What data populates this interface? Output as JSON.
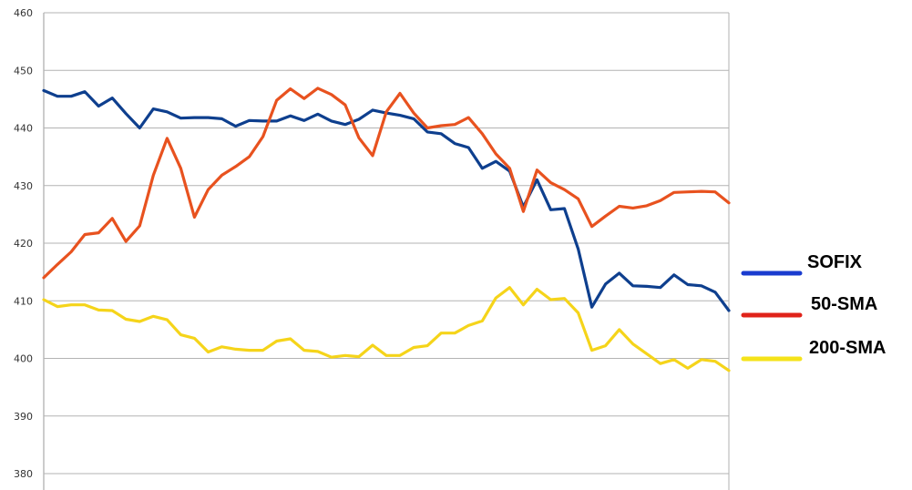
{
  "chart_data": {
    "type": "line",
    "title": "",
    "xlabel": "",
    "ylabel": "",
    "ylim": [
      380,
      460
    ],
    "yticks": [
      460,
      450,
      440,
      430,
      420,
      410,
      400,
      390,
      380
    ],
    "grid": "horizontal",
    "legend_position": "right",
    "series": [
      {
        "name": "SOFIX",
        "color": "#0e3f8e",
        "legend_color": "#1a3ccf",
        "values": [
          446.5,
          445.5,
          445.5,
          446.3,
          443.8,
          445.2,
          442.5,
          440.0,
          443.3,
          442.8,
          441.7,
          441.8,
          441.8,
          441.6,
          440.3,
          441.3,
          441.2,
          441.2,
          442.1,
          441.3,
          442.4,
          441.2,
          440.6,
          441.5,
          443.1,
          442.6,
          442.2,
          441.6,
          439.3,
          439.0,
          437.3,
          436.6,
          433.0,
          434.2,
          432.5,
          426.3,
          431.0,
          425.8,
          426.0,
          419.0,
          408.9,
          412.9,
          414.8,
          412.6,
          412.5,
          412.3,
          414.5,
          412.8,
          412.6,
          411.5,
          408.3
        ]
      },
      {
        "name": "50-SMA",
        "color": "#e8521f",
        "legend_color": "#e0231a",
        "values": [
          414.0,
          416.3,
          418.5,
          421.5,
          421.8,
          424.3,
          420.3,
          423.0,
          431.8,
          438.2,
          433.0,
          424.5,
          429.3,
          431.8,
          433.3,
          435.0,
          438.5,
          444.8,
          446.8,
          445.1,
          446.9,
          445.8,
          444.0,
          438.3,
          435.2,
          442.8,
          446.0,
          442.6,
          440.0,
          440.4,
          440.6,
          441.8,
          439.0,
          435.5,
          433.0,
          425.5,
          432.7,
          430.5,
          429.3,
          427.7,
          422.9,
          424.7,
          426.4,
          426.1,
          426.5,
          427.4,
          428.8,
          428.9,
          429.0,
          428.9,
          427.0
        ]
      },
      {
        "name": "200-SMA",
        "color": "#f5d41a",
        "legend_color": "#f5e31a",
        "values": [
          410.2,
          409.0,
          409.3,
          409.3,
          408.4,
          408.3,
          406.8,
          406.4,
          407.3,
          406.7,
          404.1,
          403.5,
          401.1,
          402.0,
          401.6,
          401.4,
          401.4,
          403.0,
          403.4,
          401.4,
          401.2,
          400.2,
          400.5,
          400.3,
          402.3,
          400.5,
          400.5,
          401.9,
          402.2,
          404.4,
          404.4,
          405.7,
          406.5,
          410.5,
          412.3,
          409.3,
          412.0,
          410.2,
          410.4,
          407.9,
          401.4,
          402.2,
          405.0,
          402.5,
          400.8,
          399.1,
          399.8,
          398.3,
          399.8,
          399.5,
          397.9
        ]
      }
    ]
  }
}
